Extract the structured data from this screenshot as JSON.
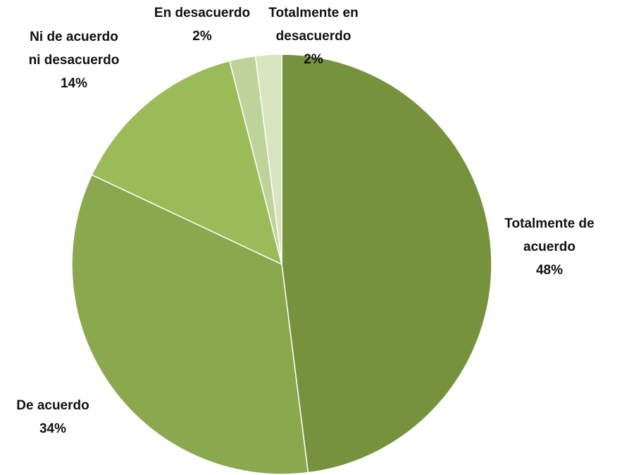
{
  "chart_data": {
    "type": "pie",
    "categories": [
      "Totalmente de acuerdo",
      "De acuerdo",
      "Ni de acuerdo ni desacuerdo",
      "En desacuerdo",
      "Totalmente en desacuerdo"
    ],
    "values": [
      48,
      34,
      14,
      2,
      2
    ],
    "value_labels": [
      "48%",
      "34%",
      "14%",
      "2%",
      "2%"
    ],
    "colors": [
      "#77923c",
      "#8aa84e",
      "#9bbb59",
      "#bdd39a",
      "#d7e4bd"
    ]
  }
}
